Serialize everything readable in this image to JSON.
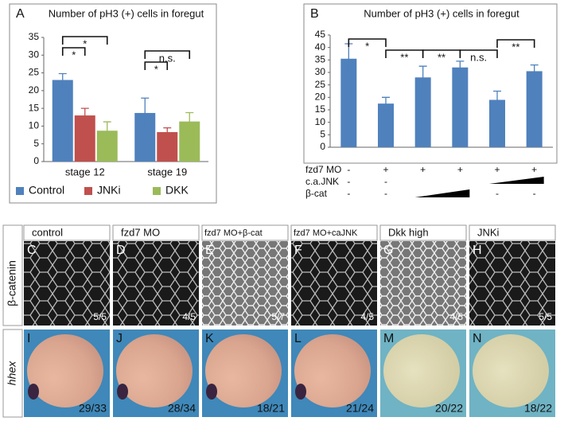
{
  "chart_data": [
    {
      "type": "bar",
      "letter": "A",
      "title": "Number of pH3 (+) cells in foregut",
      "categories": [
        "stage 12",
        "stage 19"
      ],
      "series": [
        {
          "name": "Control",
          "color": "#4f81bd",
          "values": [
            23,
            13.7
          ],
          "errors": [
            1.8,
            4.2
          ]
        },
        {
          "name": "JNKi",
          "color": "#c0504d",
          "values": [
            13,
            8.3
          ],
          "errors": [
            2,
            1.2
          ]
        },
        {
          "name": "DKK",
          "color": "#9bbb59",
          "values": [
            8.7,
            11.3
          ],
          "errors": [
            2.5,
            2.5
          ]
        }
      ],
      "ylim": [
        0,
        35
      ],
      "yticks": [
        0,
        5,
        10,
        15,
        20,
        25,
        30,
        35
      ],
      "annotations": [
        "*",
        "*",
        "*",
        "n.s."
      ]
    },
    {
      "type": "bar",
      "letter": "B",
      "title": "Number of pH3 (+) cells in foregut",
      "categories": [
        null,
        null,
        null,
        null,
        null,
        null
      ],
      "series": [
        {
          "color": "#4f81bd",
          "values": [
            35.5,
            17.5,
            28,
            32,
            19,
            30.5
          ],
          "errors": [
            6,
            2.5,
            4.5,
            2.5,
            3.5,
            2.5
          ]
        }
      ],
      "ylim": [
        0,
        45
      ],
      "yticks": [
        0,
        5,
        10,
        15,
        20,
        25,
        30,
        35,
        40,
        45
      ],
      "annotations": [
        "*",
        "**",
        "**",
        "n.s.",
        "**"
      ],
      "conditions": [
        {
          "label": "fzd7 MO",
          "cells": [
            "-",
            "+",
            "+",
            "+",
            "+",
            "+"
          ]
        },
        {
          "label": "c.a.JNK",
          "cells": [
            "-",
            "-",
            null,
            null,
            null,
            null
          ]
        },
        {
          "label": "β-cat",
          "cells": [
            "-",
            "-",
            null,
            null,
            "-",
            "-"
          ]
        }
      ]
    }
  ],
  "panels": {
    "rows": [
      {
        "label": "β-catenin",
        "items": [
          {
            "letter": "C",
            "header": "control",
            "count": "5/5"
          },
          {
            "letter": "D",
            "header": "fzd7 MO",
            "count": "4/5"
          },
          {
            "letter": "E",
            "header": "fzd7 MO+β-cat",
            "count": "5/7"
          },
          {
            "letter": "F",
            "header": "fzd7 MO+caJNK",
            "count": "4/5"
          },
          {
            "letter": "G",
            "header": "Dkk high",
            "count": "4/5"
          },
          {
            "letter": "H",
            "header": "JNKi",
            "count": "5/5"
          }
        ]
      },
      {
        "label": "hhex",
        "items": [
          {
            "letter": "I",
            "count": "29/33"
          },
          {
            "letter": "J",
            "count": "28/34"
          },
          {
            "letter": "K",
            "count": "18/21"
          },
          {
            "letter": "L",
            "count": "21/24"
          },
          {
            "letter": "M",
            "count": "20/22"
          },
          {
            "letter": "N",
            "count": "18/22"
          }
        ]
      }
    ]
  }
}
